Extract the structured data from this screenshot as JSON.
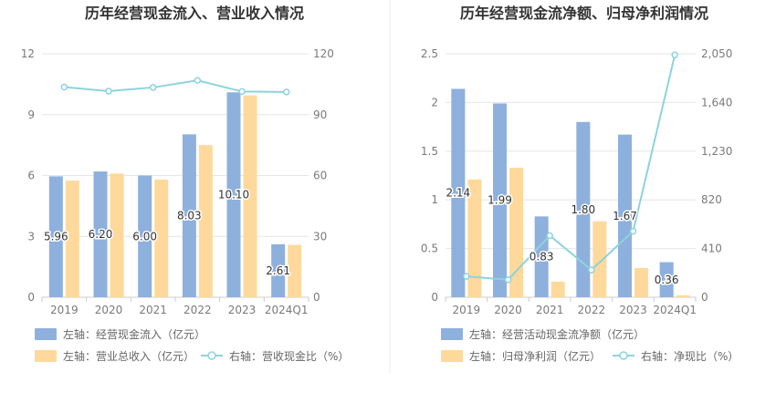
{
  "colors": {
    "bar1": "#8eb0dd",
    "bar2": "#ffd99b",
    "line": "#8dd3dc",
    "grid": "#e6e6e6",
    "divider": "#eeeeee"
  },
  "chart_data": [
    {
      "type": "bar",
      "title": "历年经营现金流入、营业收入情况",
      "categories": [
        "2019",
        "2020",
        "2021",
        "2022",
        "2023",
        "2024Q1"
      ],
      "left_axis": {
        "ticks": [
          "0",
          "3",
          "6",
          "9",
          "12"
        ],
        "range": [
          0,
          12
        ]
      },
      "right_axis": {
        "ticks": [
          "0",
          "30",
          "60",
          "90",
          "120"
        ],
        "range": [
          0,
          120
        ]
      },
      "series": [
        {
          "name": "左轴：经营现金流入（亿元）",
          "axis": "left",
          "values": [
            5.96,
            6.2,
            6.0,
            8.03,
            10.1,
            2.61
          ],
          "labels": [
            "5.96",
            "6.20",
            "6.00",
            "8.03",
            "10.10",
            "2.61"
          ]
        },
        {
          "name": "左轴：营业总收入（亿元）",
          "axis": "left",
          "values": [
            5.75,
            6.1,
            5.8,
            7.5,
            9.95,
            2.58
          ]
        },
        {
          "name": "右轴：营收现金比（%）",
          "axis": "right",
          "type": "line",
          "values": [
            103.6,
            101.6,
            103.4,
            106.9,
            101.4,
            101.2
          ]
        }
      ],
      "legend_position": "bottom",
      "grid": true
    },
    {
      "type": "bar",
      "title": "历年经营现金流净额、归母净利润情况",
      "categories": [
        "2019",
        "2020",
        "2021",
        "2022",
        "2023",
        "2024Q1"
      ],
      "left_axis": {
        "ticks": [
          "0",
          "0.5",
          "1",
          "1.5",
          "2",
          "2.5"
        ],
        "range": [
          0,
          2.5
        ]
      },
      "right_axis": {
        "ticks": [
          "0",
          "410",
          "820",
          "1,230",
          "1,640",
          "2,050"
        ],
        "range": [
          0,
          2050
        ]
      },
      "series": [
        {
          "name": "左轴：经营活动现金流净额（亿元）",
          "axis": "left",
          "values": [
            2.14,
            1.99,
            0.83,
            1.8,
            1.67,
            0.36
          ],
          "labels": [
            "2.14",
            "1.99",
            "0.83",
            "1.80",
            "1.67",
            "0.36"
          ]
        },
        {
          "name": "左轴：归母净利润（亿元）",
          "axis": "left",
          "values": [
            1.21,
            1.33,
            0.16,
            0.78,
            0.3,
            0.02
          ]
        },
        {
          "name": "右轴：净现比（%）",
          "axis": "right",
          "type": "line",
          "values": [
            176,
            147,
            519,
            230,
            556,
            2040
          ]
        }
      ],
      "legend_position": "bottom",
      "grid": true
    }
  ]
}
